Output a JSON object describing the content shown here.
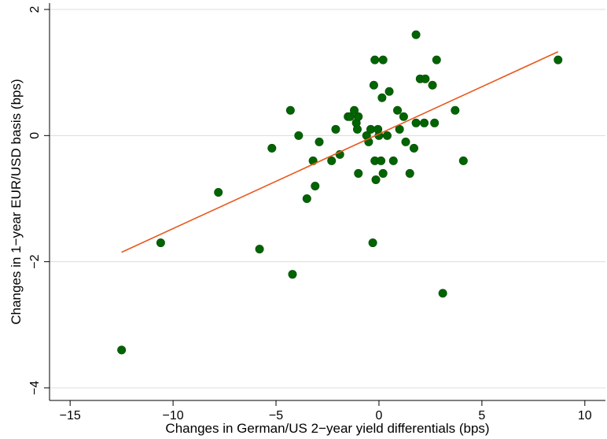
{
  "chart_data": {
    "type": "scatter",
    "title": "",
    "xlabel": "Changes in German/US 2−year yield differentials (bps)",
    "ylabel": "Changes in 1−year EUR/USD basis (bps)",
    "xlim": [
      -16,
      11
    ],
    "ylim": [
      -4.2,
      2.1
    ],
    "xticks": [
      -15,
      -10,
      -5,
      0,
      5,
      10
    ],
    "xtick_labels": [
      "−15",
      "−10",
      "−5",
      "0",
      "5",
      "10"
    ],
    "yticks": [
      -4,
      -2,
      0,
      2
    ],
    "ytick_labels": [
      "−4",
      "−2",
      "0",
      "2"
    ],
    "grid": "horizontal",
    "legend": "none",
    "colors": {
      "points": "#006400",
      "fit_line": "#e8591f",
      "grid": "#dcdcdc"
    },
    "series": [
      {
        "type": "scatter",
        "points": [
          [
            -12.5,
            -3.4
          ],
          [
            -10.6,
            -1.7
          ],
          [
            -7.8,
            -0.9
          ],
          [
            -5.8,
            -1.8
          ],
          [
            -5.2,
            -0.2
          ],
          [
            -4.3,
            0.4
          ],
          [
            -4.2,
            -2.2
          ],
          [
            -3.9,
            0.0
          ],
          [
            -3.5,
            -1.0
          ],
          [
            -3.2,
            -0.4
          ],
          [
            -3.1,
            -0.8
          ],
          [
            -2.9,
            -0.1
          ],
          [
            -2.3,
            -0.4
          ],
          [
            -2.1,
            0.1
          ],
          [
            -1.9,
            -0.3
          ],
          [
            -1.5,
            0.3
          ],
          [
            -1.4,
            0.3
          ],
          [
            -1.2,
            0.4
          ],
          [
            -1.1,
            0.2
          ],
          [
            -1.05,
            0.1
          ],
          [
            -1.0,
            0.3
          ],
          [
            -1.0,
            -0.6
          ],
          [
            -0.6,
            0.0
          ],
          [
            -0.5,
            -0.1
          ],
          [
            -0.4,
            0.1
          ],
          [
            -0.3,
            -1.7
          ],
          [
            -0.25,
            0.8
          ],
          [
            -0.2,
            1.2
          ],
          [
            -0.2,
            -0.4
          ],
          [
            -0.15,
            -0.7
          ],
          [
            -0.05,
            0.1
          ],
          [
            0.0,
            0.0
          ],
          [
            0.1,
            -0.4
          ],
          [
            0.15,
            0.6
          ],
          [
            0.2,
            -0.6
          ],
          [
            0.2,
            1.2
          ],
          [
            0.4,
            0.0
          ],
          [
            0.5,
            0.7
          ],
          [
            0.7,
            -0.4
          ],
          [
            0.9,
            0.4
          ],
          [
            1.0,
            0.1
          ],
          [
            1.2,
            0.3
          ],
          [
            1.3,
            -0.1
          ],
          [
            1.5,
            -0.6
          ],
          [
            1.7,
            -0.2
          ],
          [
            1.8,
            1.6
          ],
          [
            1.8,
            0.2
          ],
          [
            2.0,
            0.9
          ],
          [
            2.2,
            0.2
          ],
          [
            2.25,
            0.9
          ],
          [
            2.6,
            0.8
          ],
          [
            2.7,
            0.2
          ],
          [
            2.8,
            1.2
          ],
          [
            3.1,
            -2.5
          ],
          [
            3.7,
            0.4
          ],
          [
            4.1,
            -0.4
          ],
          [
            8.7,
            1.2
          ]
        ]
      },
      {
        "type": "line",
        "points": [
          [
            -12.5,
            -1.85
          ],
          [
            8.7,
            1.33
          ]
        ]
      }
    ]
  }
}
